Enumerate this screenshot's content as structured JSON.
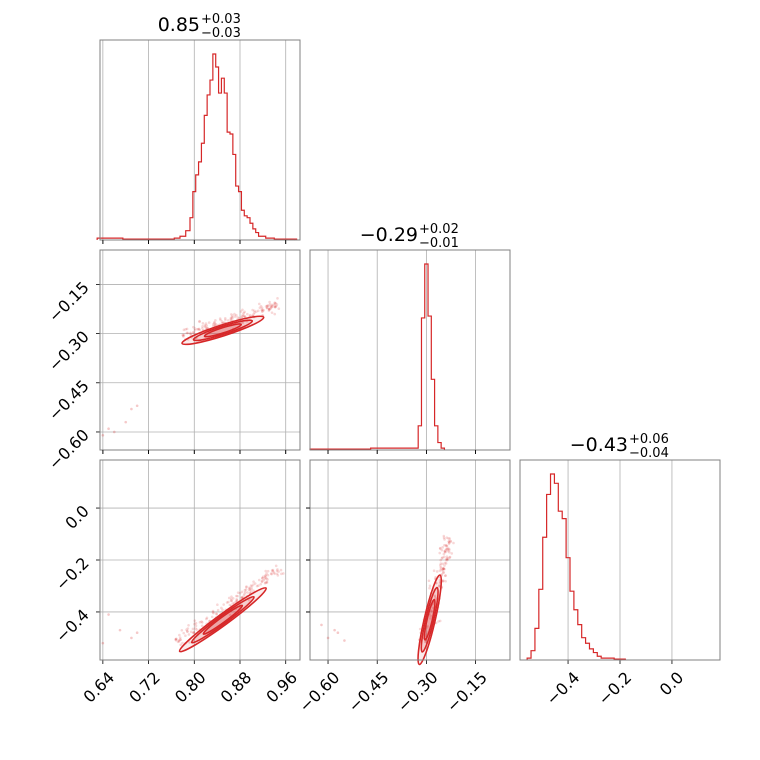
{
  "style": {
    "line_color": "#d62728",
    "fill_color": "#d62728",
    "grid_color": "#b0b0b0",
    "frame_color": "#808080"
  },
  "titles": {
    "p0": {
      "median": "0.85",
      "plus": "+0.03",
      "minus": "−0.03"
    },
    "p1": {
      "median": "−0.29",
      "plus": "+0.02",
      "minus": "−0.01"
    },
    "p2": {
      "median": "−0.43",
      "plus": "+0.06",
      "minus": "−0.04"
    }
  },
  "chart_data": {
    "type": "corner",
    "grid": true,
    "parameters": [
      {
        "index": 0,
        "range": [
          0.635,
          0.985
        ],
        "ticks": [
          0.64,
          0.72,
          0.8,
          0.88,
          0.96
        ],
        "tick_labels": [
          "0.64",
          "0.72",
          "0.80",
          "0.88",
          "0.96"
        ]
      },
      {
        "index": 1,
        "range": [
          -0.655,
          -0.045
        ],
        "ticks": [
          -0.6,
          -0.45,
          -0.3,
          -0.15
        ],
        "tick_labels": [
          "−0.60",
          "−0.45",
          "−0.30",
          "−0.15"
        ]
      },
      {
        "index": 2,
        "range": [
          -0.585,
          0.185
        ],
        "ticks": [
          -0.4,
          -0.2,
          0.0
        ],
        "tick_labels": [
          "−0.4",
          "−0.2",
          "0.0"
        ]
      }
    ],
    "histograms": [
      {
        "param": 0,
        "normalized": true,
        "bins": [
          {
            "x": 0.64,
            "count": 0.01
          },
          {
            "x": 0.66,
            "count": 0.01
          },
          {
            "x": 0.69,
            "count": 0.005
          },
          {
            "x": 0.76,
            "count": 0.005
          },
          {
            "x": 0.77,
            "count": 0.01
          },
          {
            "x": 0.78,
            "count": 0.02
          },
          {
            "x": 0.79,
            "count": 0.05
          },
          {
            "x": 0.795,
            "count": 0.12
          },
          {
            "x": 0.8,
            "count": 0.26
          },
          {
            "x": 0.805,
            "count": 0.35
          },
          {
            "x": 0.81,
            "count": 0.42
          },
          {
            "x": 0.815,
            "count": 0.52
          },
          {
            "x": 0.82,
            "count": 0.67
          },
          {
            "x": 0.825,
            "count": 0.78
          },
          {
            "x": 0.83,
            "count": 0.86
          },
          {
            "x": 0.835,
            "count": 1.0
          },
          {
            "x": 0.84,
            "count": 0.93
          },
          {
            "x": 0.845,
            "count": 0.79
          },
          {
            "x": 0.85,
            "count": 0.87
          },
          {
            "x": 0.855,
            "count": 0.79
          },
          {
            "x": 0.86,
            "count": 0.58
          },
          {
            "x": 0.865,
            "count": 0.57
          },
          {
            "x": 0.87,
            "count": 0.46
          },
          {
            "x": 0.875,
            "count": 0.29
          },
          {
            "x": 0.88,
            "count": 0.26
          },
          {
            "x": 0.885,
            "count": 0.16
          },
          {
            "x": 0.89,
            "count": 0.13
          },
          {
            "x": 0.895,
            "count": 0.12
          },
          {
            "x": 0.9,
            "count": 0.09
          },
          {
            "x": 0.905,
            "count": 0.06
          },
          {
            "x": 0.91,
            "count": 0.04
          },
          {
            "x": 0.915,
            "count": 0.02
          },
          {
            "x": 0.92,
            "count": 0.02
          },
          {
            "x": 0.93,
            "count": 0.01
          },
          {
            "x": 0.95,
            "count": 0.005
          },
          {
            "x": 0.97,
            "count": 0.005
          }
        ]
      },
      {
        "param": 1,
        "normalized": true,
        "bins": [
          {
            "x": -0.64,
            "count": 0.005
          },
          {
            "x": -0.61,
            "count": 0.005
          },
          {
            "x": -0.33,
            "count": 0.01
          },
          {
            "x": -0.32,
            "count": 0.13
          },
          {
            "x": -0.31,
            "count": 0.71
          },
          {
            "x": -0.3,
            "count": 1.0
          },
          {
            "x": -0.29,
            "count": 0.72
          },
          {
            "x": -0.28,
            "count": 0.38
          },
          {
            "x": -0.27,
            "count": 0.13
          },
          {
            "x": -0.26,
            "count": 0.04
          },
          {
            "x": -0.25,
            "count": 0.01
          }
        ]
      },
      {
        "param": 2,
        "normalized": true,
        "bins": [
          {
            "x": -0.55,
            "count": 0.01
          },
          {
            "x": -0.535,
            "count": 0.05
          },
          {
            "x": -0.52,
            "count": 0.17
          },
          {
            "x": -0.505,
            "count": 0.38
          },
          {
            "x": -0.49,
            "count": 0.66
          },
          {
            "x": -0.475,
            "count": 0.89
          },
          {
            "x": -0.46,
            "count": 1.0
          },
          {
            "x": -0.445,
            "count": 0.95
          },
          {
            "x": -0.43,
            "count": 0.8
          },
          {
            "x": -0.415,
            "count": 0.76
          },
          {
            "x": -0.4,
            "count": 0.55
          },
          {
            "x": -0.385,
            "count": 0.37
          },
          {
            "x": -0.37,
            "count": 0.27
          },
          {
            "x": -0.355,
            "count": 0.19
          },
          {
            "x": -0.34,
            "count": 0.12
          },
          {
            "x": -0.325,
            "count": 0.09
          },
          {
            "x": -0.31,
            "count": 0.06
          },
          {
            "x": -0.295,
            "count": 0.04
          },
          {
            "x": -0.28,
            "count": 0.02
          },
          {
            "x": -0.265,
            "count": 0.01
          },
          {
            "x": -0.245,
            "count": 0.01
          },
          {
            "x": -0.2,
            "count": 0.005
          }
        ]
      }
    ],
    "scatter_panels": [
      {
        "x_param": 0,
        "y_param": 1,
        "trend": {
          "from": [
            0.78,
            -0.305
          ],
          "to": [
            0.95,
            -0.21
          ]
        },
        "center": [
          0.85,
          -0.29
        ],
        "outliers": [
          [
            0.65,
            -0.59
          ],
          [
            0.66,
            -0.6
          ],
          [
            0.68,
            -0.57
          ],
          [
            0.69,
            -0.53
          ],
          [
            0.7,
            -0.52
          ],
          [
            0.64,
            -0.61
          ]
        ]
      },
      {
        "x_param": 0,
        "y_param": 2,
        "trend": {
          "from": [
            0.77,
            -0.52
          ],
          "to": [
            0.95,
            -0.23
          ]
        },
        "center": [
          0.85,
          -0.43
        ],
        "outliers": [
          [
            0.65,
            -0.41
          ],
          [
            0.67,
            -0.47
          ],
          [
            0.69,
            -0.5
          ],
          [
            0.7,
            -0.48
          ],
          [
            0.64,
            -0.52
          ]
        ]
      },
      {
        "x_param": 1,
        "y_param": 2,
        "trend": {
          "from": [
            -0.305,
            -0.52
          ],
          "to": [
            -0.23,
            -0.11
          ]
        },
        "center": [
          -0.29,
          -0.43
        ],
        "outliers": [
          [
            -0.62,
            -0.45
          ],
          [
            -0.6,
            -0.5
          ],
          [
            -0.57,
            -0.48
          ],
          [
            -0.55,
            -0.51
          ],
          [
            -0.58,
            -0.47
          ]
        ]
      }
    ]
  }
}
